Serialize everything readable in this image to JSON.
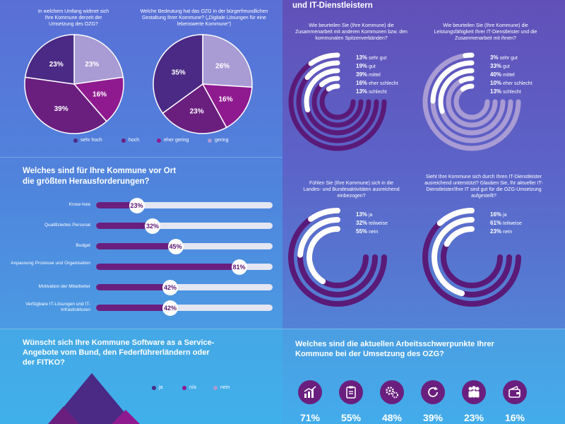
{
  "header_right": "und IT-Dienstleistern",
  "pies": {
    "q1": "In welchem Umfang widmet sich Ihre Kommune derzeit der Umsetzung des OZG?",
    "q2": "Welche Bedeutung hat das OZG in der bürgerfreundlichen Gestaltung Ihrer Kommune? („Digitale Lösungen für eine lebenswerte Kommune“)",
    "legend": [
      "sehr hoch",
      "hoch",
      "eher gering",
      "gering"
    ]
  },
  "challenges": {
    "title_line1": "Welches sind für Ihre Kommune vor Ort",
    "title_line2": "die größten Herausforderungen?"
  },
  "rings": {
    "r1_q": "Wie beurteilen Sie (Ihre Kommune) die Zusammenarbeit mit anderen Kommunen bzw. den kommunalen Spitzenverbänden?",
    "r2_q": "Wie beurteilen Sie (Ihre Kommune) die Leistungsfähigkeit Ihrer IT-Dienstleister und die Zusammenarbeit mit ihnen?",
    "r3_q": "Fühlen Sie (Ihre Kommune) sich in die Landes- und Bundesaktivitäten ausreichend einbezogen?",
    "r4_q": "Sieht Ihre Kommune sich durch Ihren IT-Dienstleister ausreichend unterstützt? Glauben Sie, Ihr aktueller IT-Dienstleister/Ihre IT sind gut für die OZG-Umsetzung aufgestellt?"
  },
  "saas": {
    "title_line1": "Wünscht sich Ihre Kommune Software as a Service-",
    "title_line2": "Angebote vom Bund, den Federführerländern oder",
    "title_line3": "der FITKO?",
    "legend": [
      "ja",
      "n/a",
      "nein"
    ]
  },
  "priorities": {
    "title_line1": "Welches sind die aktuellen Arbeitsschwerpunkte Ihrer",
    "title_line2": "Kommune bei der Umsetzung des OZG?",
    "items": [
      {
        "icon": "growth-chart-icon",
        "value": "71%"
      },
      {
        "icon": "clipboard-icon",
        "value": "55%"
      },
      {
        "icon": "gears-icon",
        "value": "48%"
      },
      {
        "icon": "cycle-arrows-icon",
        "value": "39%"
      },
      {
        "icon": "people-icon",
        "value": "23%"
      },
      {
        "icon": "wallet-icon",
        "value": "16%"
      }
    ]
  },
  "colors": {
    "dark_purple": "#4a2a85",
    "mid_purple": "#6a1f7f",
    "magenta": "#8f1a8f",
    "lavender": "#a99bd4",
    "track": "#e4e6f2"
  },
  "chart_data": [
    {
      "type": "pie",
      "labels": [
        "sehr hoch",
        "hoch",
        "eher gering",
        "gering"
      ],
      "values": [
        23,
        39,
        16,
        23
      ]
    },
    {
      "type": "pie",
      "labels": [
        "sehr hoch",
        "hoch",
        "eher gering",
        "gering"
      ],
      "values": [
        35,
        23,
        16,
        26
      ]
    },
    {
      "type": "bar",
      "categories": [
        "Know-how",
        "Qualifiziertes Personal",
        "Budget",
        "Anpassung Prozesse und Organisation",
        "Motivation der Mitarbeiter",
        "Verfügbare IT-Lösungen und IT-Infrastrukturen"
      ],
      "values": [
        23,
        32,
        45,
        81,
        42,
        42
      ],
      "value_labels": [
        "23%",
        "32%",
        "45%",
        "81%",
        "42%",
        "42%"
      ],
      "ylim": [
        0,
        100
      ]
    },
    {
      "type": "ring",
      "labels": [
        "sehr gut",
        "gut",
        "mittel",
        "eher schlecht",
        "schlecht"
      ],
      "values": [
        13,
        19,
        39,
        16,
        13
      ],
      "value_labels": [
        "13%",
        "19%",
        "39%",
        "16%",
        "13%"
      ]
    },
    {
      "type": "ring",
      "labels": [
        "sehr gut",
        "gut",
        "mittel",
        "eher schlecht",
        "schlecht"
      ],
      "values": [
        3,
        33,
        40,
        10,
        13
      ],
      "value_labels": [
        "3%",
        "33%",
        "40%",
        "10%",
        "13%"
      ]
    },
    {
      "type": "ring",
      "labels": [
        "ja",
        "teilweise",
        "nein"
      ],
      "values": [
        13,
        32,
        55
      ],
      "value_labels": [
        "13%",
        "32%",
        "55%"
      ]
    },
    {
      "type": "ring",
      "labels": [
        "ja",
        "teilweise",
        "nein"
      ],
      "values": [
        16,
        61,
        23
      ],
      "value_labels": [
        "16%",
        "61%",
        "23%"
      ]
    }
  ]
}
